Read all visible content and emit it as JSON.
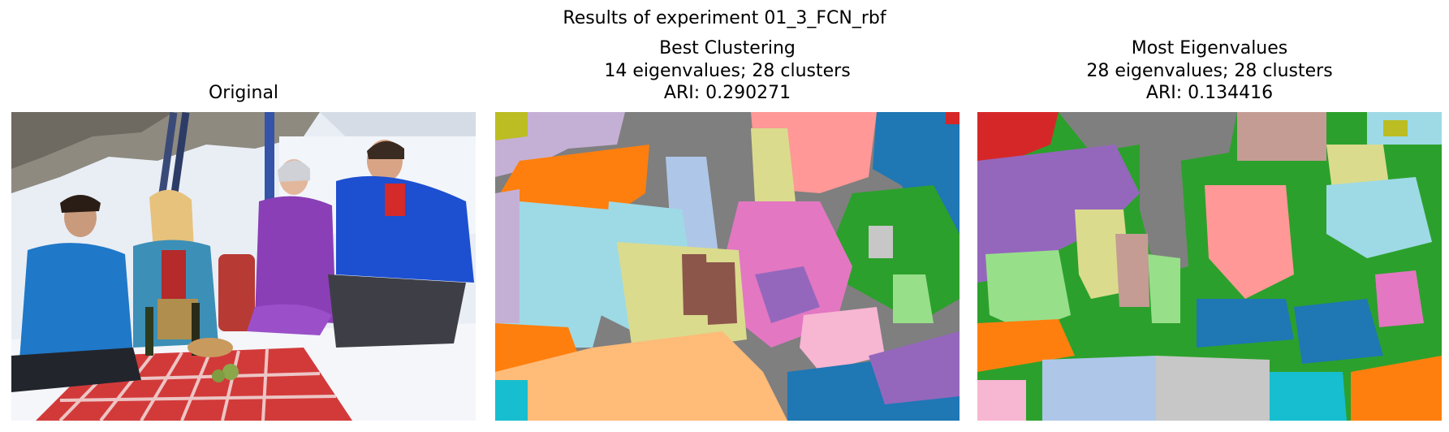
{
  "figure": {
    "suptitle": "Results of experiment 01_3_FCN_rbf"
  },
  "panels": [
    {
      "id": "original",
      "title_lines": [
        "Original"
      ],
      "content": "photograph"
    },
    {
      "id": "best",
      "title_lines": [
        "Best Clustering",
        "14 eigenvalues; 28 clusters",
        "ARI: 0.290271"
      ],
      "content": "segmentation"
    },
    {
      "id": "most",
      "title_lines": [
        "Most Eigenvalues",
        "28 eigenvalues; 28 clusters",
        "ARI: 0.134416"
      ],
      "content": "segmentation"
    }
  ],
  "chart_data": [
    {
      "type": "heatmap",
      "title": "Original",
      "xlabel": "",
      "ylabel": "",
      "axes": "off"
    },
    {
      "type": "heatmap",
      "title": "Best Clustering\n14 eigenvalues; 28 clusters\nARI: 0.290271",
      "eigenvalues": 14,
      "clusters": 28,
      "ari": 0.290271,
      "axes": "off"
    },
    {
      "type": "heatmap",
      "title": "Most Eigenvalues\n28 eigenvalues; 28 clusters\nARI: 0.134416",
      "eigenvalues": 28,
      "clusters": 28,
      "ari": 0.134416,
      "axes": "off"
    }
  ],
  "palette": {
    "tab_blue": "#1f77b4",
    "tab_orange": "#ff7f0e",
    "tab_green": "#2ca02c",
    "tab_red": "#d62728",
    "tab_purple": "#9467bd",
    "tab_brown": "#8c564b",
    "tab_pink": "#e377c2",
    "tab_gray": "#7f7f7f",
    "tab_olive": "#bcbd22",
    "tab_cyan": "#17becf",
    "light_blue": "#aec7e8",
    "light_orange": "#ffbb78",
    "light_green": "#98df8a",
    "light_red": "#ff9896",
    "light_purple": "#c5b0d5",
    "light_brown": "#c49c94",
    "light_pink": "#f7b6d2",
    "light_gray": "#c7c7c7",
    "light_olive": "#dbdb8d",
    "light_cyan": "#9edae5"
  }
}
